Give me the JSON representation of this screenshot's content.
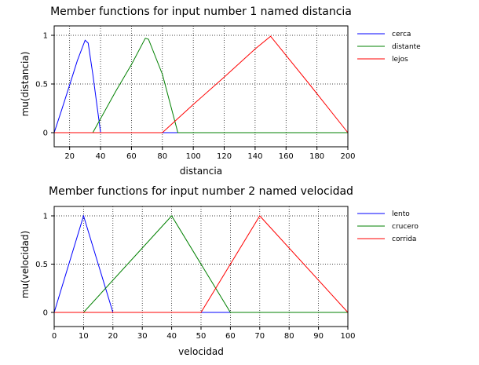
{
  "chart_data": [
    {
      "type": "line",
      "title": "Member functions for input number 1 named distancia",
      "xlabel": "distancia",
      "ylabel": "mu(distancia)",
      "xlim": [
        10,
        200
      ],
      "ylim": [
        0,
        1.1
      ],
      "xticks": [
        "20",
        "40",
        "60",
        "80",
        "100",
        "120",
        "140",
        "160",
        "180",
        "200"
      ],
      "yticks": [
        "0",
        "0.5",
        "1"
      ],
      "grid": true,
      "legend_position": "right",
      "series": [
        {
          "name": "cerca",
          "color": "#0000ff",
          "x": [
            10,
            15,
            20,
            25,
            30,
            32,
            35,
            40,
            200
          ],
          "y": [
            0,
            0.24,
            0.49,
            0.74,
            0.95,
            0.92,
            0.6,
            0,
            0
          ]
        },
        {
          "name": "distante",
          "color": "#008000",
          "x": [
            10,
            35,
            50,
            60,
            69,
            71,
            80,
            90,
            200
          ],
          "y": [
            0,
            0,
            0.43,
            0.7,
            0.97,
            0.96,
            0.6,
            0,
            0
          ]
        },
        {
          "name": "lejos",
          "color": "#ff0000",
          "x": [
            10,
            80,
            100,
            120,
            140,
            150,
            175,
            200
          ],
          "y": [
            0,
            0,
            0.29,
            0.57,
            0.86,
            0.99,
            0.5,
            0
          ]
        }
      ]
    },
    {
      "type": "line",
      "title": "Member functions for input number 2 named velocidad",
      "xlabel": "velocidad",
      "ylabel": "mu(velocidad)",
      "xlim": [
        0,
        100
      ],
      "ylim": [
        0,
        1.1
      ],
      "xticks": [
        "0",
        "10",
        "20",
        "30",
        "40",
        "50",
        "60",
        "70",
        "80",
        "90",
        "100"
      ],
      "yticks": [
        "0",
        "0.5",
        "1"
      ],
      "grid": true,
      "legend_position": "right",
      "series": [
        {
          "name": "lento",
          "color": "#0000ff",
          "x": [
            0,
            10,
            20,
            100
          ],
          "y": [
            0,
            1,
            0,
            0
          ]
        },
        {
          "name": "crucero",
          "color": "#008000",
          "x": [
            0,
            10,
            40,
            60,
            100
          ],
          "y": [
            0,
            0,
            1,
            0,
            0
          ]
        },
        {
          "name": "corrida",
          "color": "#ff0000",
          "x": [
            0,
            50,
            70,
            100
          ],
          "y": [
            0,
            0,
            1,
            0
          ]
        }
      ]
    }
  ]
}
